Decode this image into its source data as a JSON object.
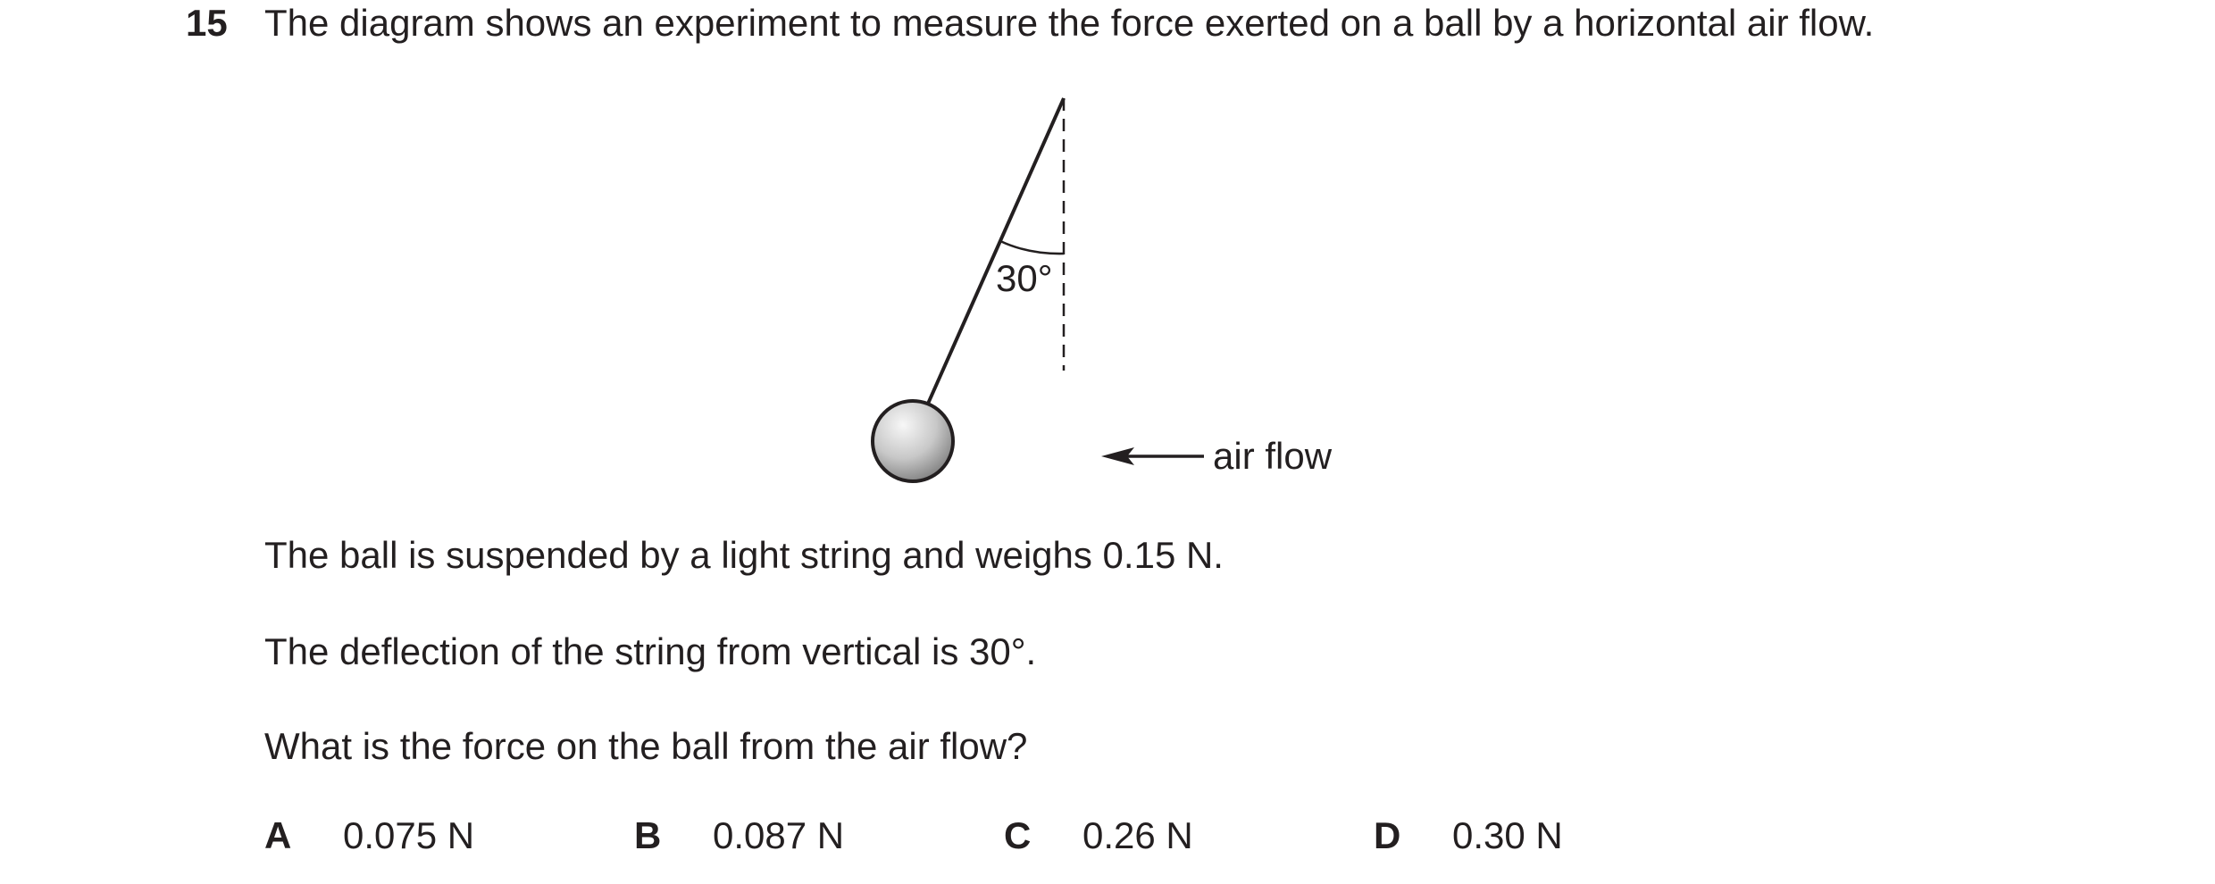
{
  "question": {
    "number": "15",
    "stem": "The diagram shows an experiment to measure the force exerted on a ball by a horizontal air flow."
  },
  "diagram": {
    "angle_label": "30°",
    "airflow_label": "air flow",
    "deflection_degrees": 30
  },
  "statements": [
    "The ball is suspended by a light string and weighs 0.15 N.",
    "The deflection of the string from vertical is 30°.",
    "What is the force on the ball from the air flow?"
  ],
  "options": [
    {
      "letter": "A",
      "value": "0.075 N"
    },
    {
      "letter": "B",
      "value": "0.087 N"
    },
    {
      "letter": "C",
      "value": "0.26 N"
    },
    {
      "letter": "D",
      "value": "0.30 N"
    }
  ],
  "colors": {
    "ink": "#231f20",
    "ball_light": "#f2f2f2",
    "ball_dark": "#8c8c8c"
  }
}
